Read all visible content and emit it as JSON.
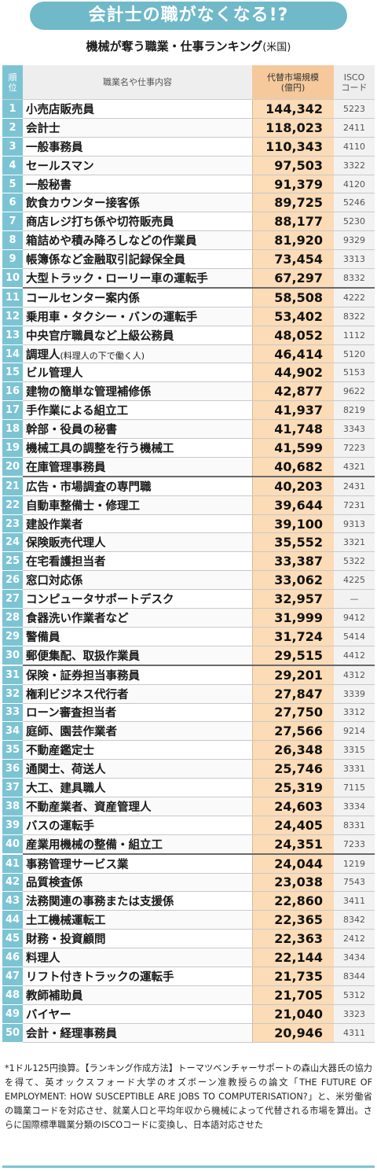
{
  "banner": {
    "title": "会計士の職がなくなる!?"
  },
  "subtitle": {
    "main": "機械が奪う職業・仕事ランキング",
    "country": "(米国)"
  },
  "headers": {
    "rank": "順\n位",
    "job": "職業名や仕事内容",
    "value": "代替市場規模\n(億円)",
    "isco": "ISCO\nコード"
  },
  "rows": [
    {
      "rank": "1",
      "job": "小売店販売員",
      "value": "144,342",
      "isco": "5223"
    },
    {
      "rank": "2",
      "job": "会計士",
      "value": "118,023",
      "isco": "2411"
    },
    {
      "rank": "3",
      "job": "一般事務員",
      "value": "110,343",
      "isco": "4110"
    },
    {
      "rank": "4",
      "job": "セールスマン",
      "value": "97,503",
      "isco": "3322"
    },
    {
      "rank": "5",
      "job": "一般秘書",
      "value": "91,379",
      "isco": "4120"
    },
    {
      "rank": "6",
      "job": "飲食カウンター接客係",
      "value": "89,725",
      "isco": "5246"
    },
    {
      "rank": "7",
      "job": "商店レジ打ち係や切符販売員",
      "value": "88,177",
      "isco": "5230"
    },
    {
      "rank": "8",
      "job": "箱詰めや積み降ろしなどの作業員",
      "value": "81,920",
      "isco": "9329"
    },
    {
      "rank": "9",
      "job": "帳簿係など金融取引記録保全員",
      "value": "73,454",
      "isco": "3313"
    },
    {
      "rank": "10",
      "job": "大型トラック・ローリー車の運転手",
      "value": "67,297",
      "isco": "8332"
    },
    {
      "rank": "11",
      "job": "コールセンター案内係",
      "value": "58,508",
      "isco": "4222"
    },
    {
      "rank": "12",
      "job": "乗用車・タクシー・バンの運転手",
      "value": "53,402",
      "isco": "8322"
    },
    {
      "rank": "13",
      "job": "中央官庁職員など上級公務員",
      "value": "48,052",
      "isco": "1112"
    },
    {
      "rank": "14",
      "job": "調理人",
      "note": "(料理人の下で働く人)",
      "value": "46,414",
      "isco": "5120"
    },
    {
      "rank": "15",
      "job": "ビル管理人",
      "value": "44,902",
      "isco": "5153"
    },
    {
      "rank": "16",
      "job": "建物の簡単な管理補修係",
      "value": "42,877",
      "isco": "9622"
    },
    {
      "rank": "17",
      "job": "手作業による組立工",
      "value": "41,937",
      "isco": "8219"
    },
    {
      "rank": "18",
      "job": "幹部・役員の秘書",
      "value": "41,748",
      "isco": "3343"
    },
    {
      "rank": "19",
      "job": "機械工具の調整を行う機械工",
      "value": "41,599",
      "isco": "7223"
    },
    {
      "rank": "20",
      "job": "在庫管理事務員",
      "value": "40,682",
      "isco": "4321"
    },
    {
      "rank": "21",
      "job": "広告・市場調査の専門職",
      "value": "40,203",
      "isco": "2431"
    },
    {
      "rank": "22",
      "job": "自動車整備士・修理工",
      "value": "39,644",
      "isco": "7231"
    },
    {
      "rank": "23",
      "job": "建設作業者",
      "value": "39,100",
      "isco": "9313"
    },
    {
      "rank": "24",
      "job": "保険販売代理人",
      "value": "35,552",
      "isco": "3321"
    },
    {
      "rank": "25",
      "job": "在宅看護担当者",
      "value": "33,387",
      "isco": "5322"
    },
    {
      "rank": "26",
      "job": "窓口対応係",
      "value": "33,062",
      "isco": "4225"
    },
    {
      "rank": "27",
      "job": "コンピュータサポートデスク",
      "value": "32,957",
      "isco": "—"
    },
    {
      "rank": "28",
      "job": "食器洗い作業者など",
      "value": "31,999",
      "isco": "9412"
    },
    {
      "rank": "29",
      "job": "警備員",
      "value": "31,724",
      "isco": "5414"
    },
    {
      "rank": "30",
      "job": "郵便集配、取扱作業員",
      "value": "29,515",
      "isco": "4412"
    },
    {
      "rank": "31",
      "job": "保険・証券担当事務員",
      "value": "29,201",
      "isco": "4312"
    },
    {
      "rank": "32",
      "job": "権利ビジネス代行者",
      "value": "27,847",
      "isco": "3339"
    },
    {
      "rank": "33",
      "job": "ローン審査担当者",
      "value": "27,750",
      "isco": "3312"
    },
    {
      "rank": "34",
      "job": "庭師、園芸作業者",
      "value": "27,566",
      "isco": "9214"
    },
    {
      "rank": "35",
      "job": "不動産鑑定士",
      "value": "26,348",
      "isco": "3315"
    },
    {
      "rank": "36",
      "job": "通関士、荷送人",
      "value": "25,746",
      "isco": "3331"
    },
    {
      "rank": "37",
      "job": "大工、建具職人",
      "value": "25,319",
      "isco": "7115"
    },
    {
      "rank": "38",
      "job": "不動産業者、資産管理人",
      "value": "24,603",
      "isco": "3334"
    },
    {
      "rank": "39",
      "job": "バスの運転手",
      "value": "24,405",
      "isco": "8331"
    },
    {
      "rank": "40",
      "job": "産業用機械の整備・組立工",
      "value": "24,351",
      "isco": "7233"
    },
    {
      "rank": "41",
      "job": "事務管理サービス業",
      "value": "24,044",
      "isco": "1219"
    },
    {
      "rank": "42",
      "job": "品質検査係",
      "value": "23,038",
      "isco": "7543"
    },
    {
      "rank": "43",
      "job": "法務関連の事務または支援係",
      "value": "22,860",
      "isco": "3411"
    },
    {
      "rank": "44",
      "job": "土工機械運転工",
      "value": "22,365",
      "isco": "8342"
    },
    {
      "rank": "45",
      "job": "財務・投資顧問",
      "value": "22,363",
      "isco": "2412"
    },
    {
      "rank": "46",
      "job": "料理人",
      "value": "22,144",
      "isco": "3434"
    },
    {
      "rank": "47",
      "job": "リフト付きトラックの運転手",
      "value": "21,735",
      "isco": "8344"
    },
    {
      "rank": "48",
      "job": "教師補助員",
      "value": "21,705",
      "isco": "5312"
    },
    {
      "rank": "49",
      "job": "バイヤー",
      "value": "21,040",
      "isco": "3323"
    },
    {
      "rank": "50",
      "job": "会計・経理事務員",
      "value": "20,946",
      "isco": "4311"
    }
  ],
  "footnote": "*1ドル125円換算。【ランキング作成方法】トーマツベンチャーサポートの森山大器氏の協力を得て、英オックスフォード大学のオズボーン准教授らの論文「THE FUTURE OF EMPLOYMENT: HOW SUSCEPTIBLE ARE JOBS TO COMPUTERISATION?」と、米労働省の職業コードを対応させ、就業人口と平均年収から機械によって代替される市場を算出。さらに国際標準職業分類のISCOコードに変換し、日本語対応させた",
  "colors": {
    "banner": "#6fb9c8",
    "rank_cell": "#7cc4d3",
    "value_cell": "#fbdcb7",
    "value_header": "#f5c99b",
    "isco_cell": "#f2f2f2"
  }
}
